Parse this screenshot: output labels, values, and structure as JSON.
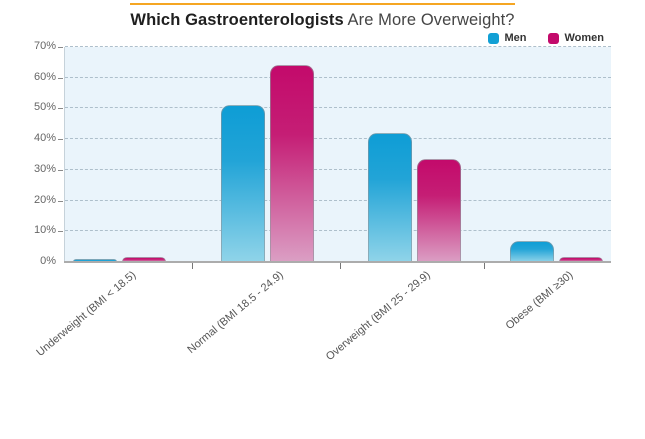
{
  "title": {
    "bold": "Which Gastroenterologists",
    "regular": " Are More Overweight?"
  },
  "legend": [
    {
      "label": "Men",
      "color": "#12A0D5"
    },
    {
      "label": "Women",
      "color": "#C30A6B"
    }
  ],
  "chart_data": {
    "type": "bar",
    "title": "Which Gastroenterologists Are More Overweight?",
    "categories": [
      "Underweight (BMI < 18.5)",
      "Normal (BMI 18.5 - 24.9)",
      "Overweight (BMI 25 - 29.9)",
      "Obese (BMI ≥30)"
    ],
    "series": [
      {
        "name": "Men",
        "values": [
          1,
          51,
          42,
          7
        ],
        "color_top": "#0E9DD5",
        "color_mid": "#22A4D7",
        "color_bottom": "#90D4E9"
      },
      {
        "name": "Women",
        "values": [
          1.5,
          64,
          33.5,
          1.5
        ],
        "color_top": "#C30A6B",
        "color_mid": "#C51E75",
        "color_bottom": "#DB9FC4"
      }
    ],
    "xlabel": "",
    "ylabel": "",
    "y_ticks": [
      "0%",
      "10%",
      "20%",
      "30%",
      "40%",
      "50%",
      "60%",
      "70%"
    ],
    "ylim": [
      0,
      70
    ],
    "grid": "horizontal-dashed",
    "legend_position": "top-right",
    "plot_background": "#EAF4FB",
    "accent_rule_color": "#F5A623"
  }
}
